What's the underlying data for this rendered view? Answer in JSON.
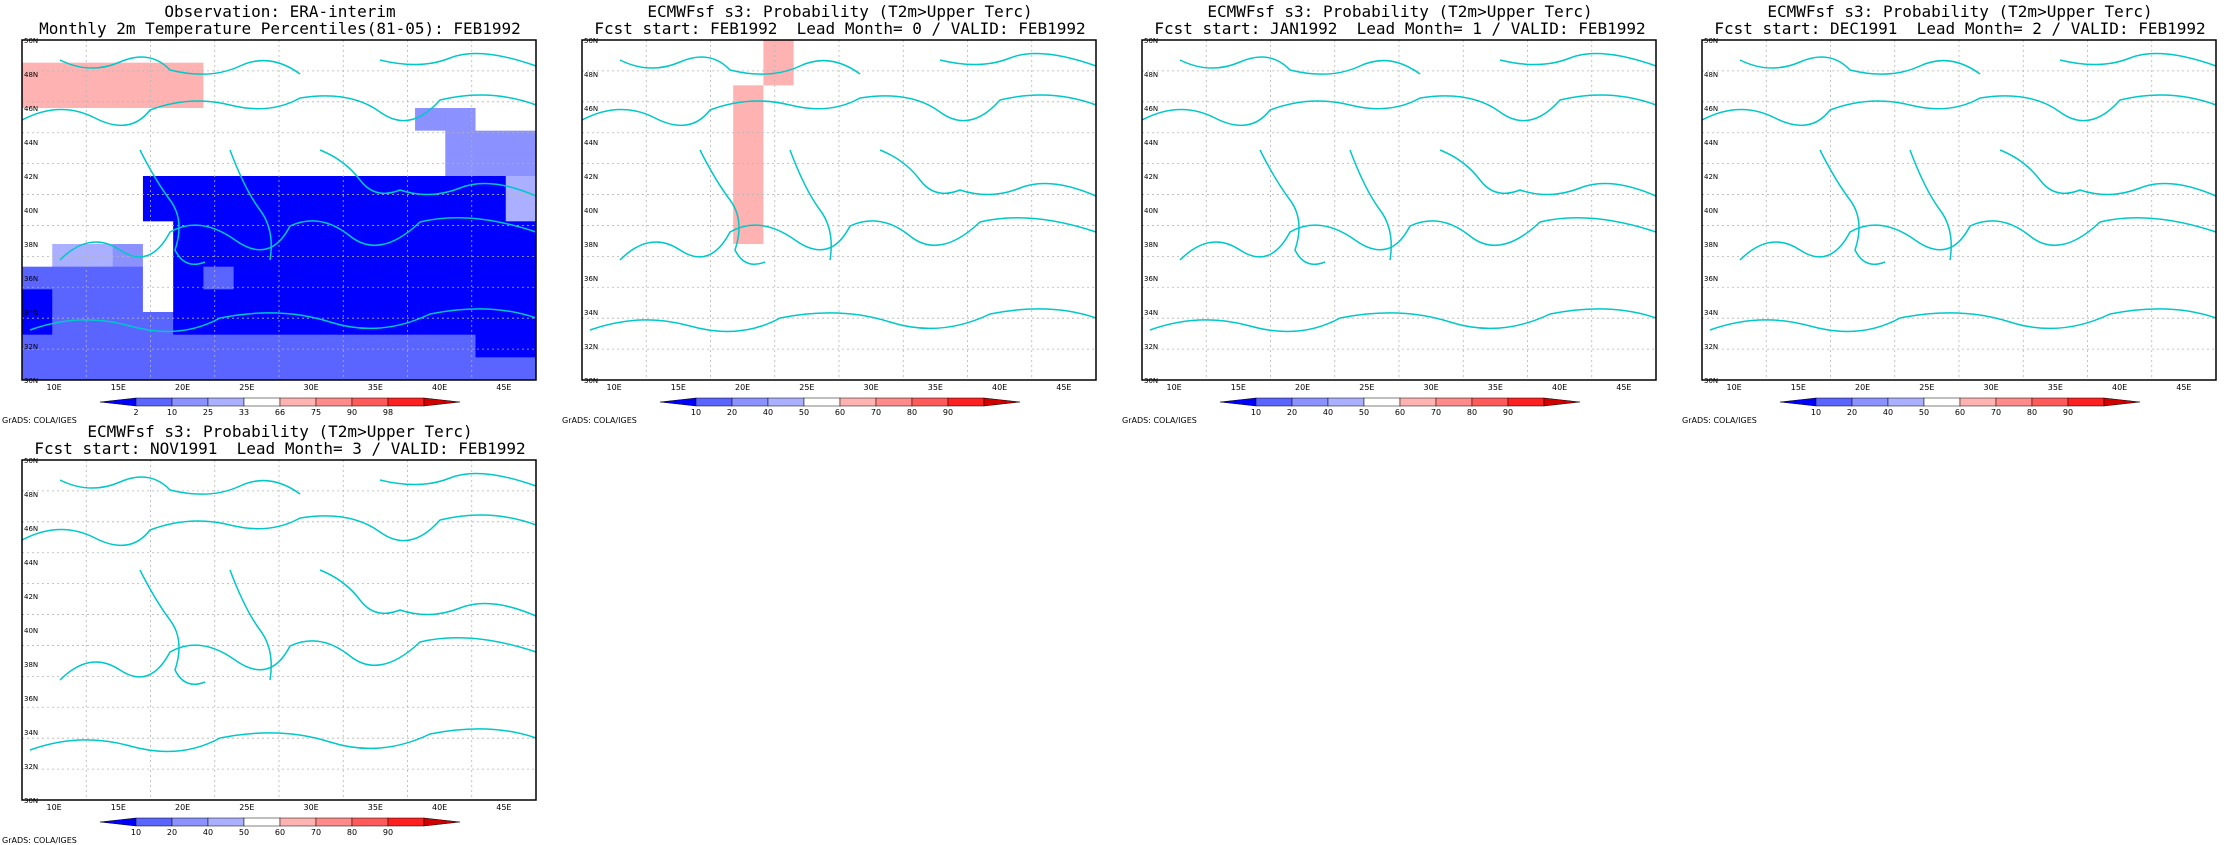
{
  "colors": {
    "scale": [
      "#0000ff",
      "#5a64ff",
      "#8b91ff",
      "#aab0ff",
      "#ffffff",
      "#ffb2b2",
      "#ff8a8a",
      "#ff5a5a",
      "#ff2020",
      "#d00000"
    ],
    "coast": "#00c8c8",
    "grid": "#b4b4b4"
  },
  "axes": {
    "lon_labels": [
      "10E",
      "15E",
      "20E",
      "25E",
      "30E",
      "35E",
      "40E",
      "45E"
    ],
    "lat_labels": [
      "30N",
      "32N",
      "34N",
      "36N",
      "38N",
      "40N",
      "42N",
      "44N",
      "46N",
      "48N",
      "50N"
    ]
  },
  "credit": "GrADS: COLA/IGES",
  "panels": [
    {
      "title1": "Observation: ERA-interim",
      "title2": "Monthly 2m Temperature Percentiles(81-05): FEB1992",
      "colorbar_labels": [
        "2",
        "10",
        "25",
        "33",
        "66",
        "75",
        "90",
        "98"
      ],
      "grid": [
        "44444444444444444",
        "55555544444444444",
        "55555544444444444",
        "44444444444442244",
        "44444444444444222",
        "44444444444444222",
        "44440000000000003",
        "44440000000000003",
        "44444000000000000",
        "43324000000000000",
        "11114010000000000",
        "01114000000000000",
        "01111000000000000",
        "11111111111111100",
        "11111111111111111"
      ]
    },
    {
      "title1": "ECMWFsf s3: Probability (T2m>Upper Terc)",
      "title2": "Fcst start: FEB1992  Lead Month= 0 / VALID: FEB1992",
      "colorbar_labels": [
        "10",
        "20",
        "40",
        "50",
        "60",
        "70",
        "80",
        "90"
      ],
      "grid": [
        "44444454444444444",
        "44444454444444444",
        "44444544444444444",
        "44444544444444444",
        "44444544444444444",
        "44444544444444444",
        "44444544444444444",
        "44444544444444444",
        "44444544444444444",
        "44444444444444444",
        "44444444444444444",
        "44444444444444444",
        "44444444444444444",
        "44444444444444444",
        "44444444444444444"
      ]
    },
    {
      "title1": "ECMWFsf s3: Probability (T2m>Upper Terc)",
      "title2": "Fcst start: JAN1992  Lead Month= 1 / VALID: FEB1992",
      "colorbar_labels": [
        "10",
        "20",
        "40",
        "50",
        "60",
        "70",
        "80",
        "90"
      ],
      "grid": [
        "44444444444444444",
        "44444444444444444",
        "44444444444444444",
        "44444444444444444",
        "44444444444444444",
        "44444444444444444",
        "44444444444444444",
        "44444444444444444",
        "44444444444444444",
        "44444444444444444",
        "44444444444444444",
        "44444444444444444",
        "44444444444444444",
        "44444444444444444",
        "44444444444444444"
      ]
    },
    {
      "title1": "ECMWFsf s3: Probability (T2m>Upper Terc)",
      "title2": "Fcst start: DEC1991  Lead Month= 2 / VALID: FEB1992",
      "colorbar_labels": [
        "10",
        "20",
        "40",
        "50",
        "60",
        "70",
        "80",
        "90"
      ],
      "grid": [
        "44444444444444444",
        "44444444444444444",
        "44444444444444444",
        "44444444444444444",
        "44444444444444444",
        "44444444444444444",
        "44444444444444444",
        "44444444444444444",
        "44444444444444444",
        "44444444444444444",
        "44444444444444444",
        "44444444444444444",
        "44444444444444444",
        "44444444444444444",
        "44444444444444444"
      ]
    },
    {
      "title1": "ECMWFsf s3: Probability (T2m>Upper Terc)",
      "title2": "Fcst start: NOV1991  Lead Month= 3 / VALID: FEB1992",
      "colorbar_labels": [
        "10",
        "20",
        "40",
        "50",
        "60",
        "70",
        "80",
        "90"
      ],
      "grid": [
        "44444444444444444",
        "44444444444444444",
        "44444444444444444",
        "44444444444444444",
        "44444444444444444",
        "44444444444444444",
        "44444444444444444",
        "44444444444444444",
        "44444444444444444",
        "44444444444444444",
        "44444444444444444",
        "44444444444444444",
        "44444444444444444",
        "44444444444444444",
        "44444444444444444"
      ]
    }
  ]
}
